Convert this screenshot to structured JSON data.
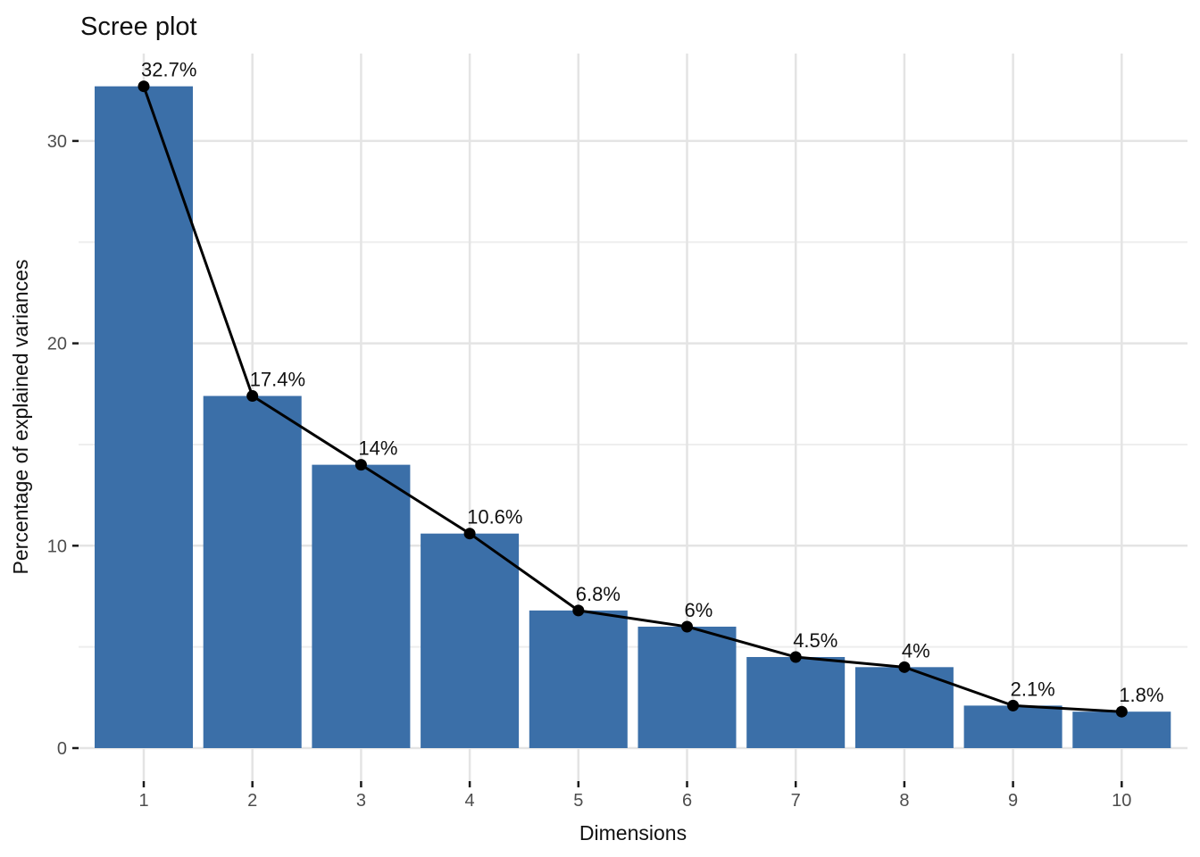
{
  "chart_data": {
    "type": "bar",
    "overlay": "line+points",
    "title": "Scree plot",
    "xlabel": "Dimensions",
    "ylabel": "Percentage of explained variances",
    "categories": [
      "1",
      "2",
      "3",
      "4",
      "5",
      "6",
      "7",
      "8",
      "9",
      "10"
    ],
    "series": [
      {
        "name": "Percentage of explained variances",
        "values": [
          32.7,
          17.4,
          14,
          10.6,
          6.8,
          6,
          4.5,
          4,
          2.1,
          1.8
        ]
      }
    ],
    "point_labels": [
      "32.7%",
      "17.4%",
      "14%",
      "10.6%",
      "6.8%",
      "6%",
      "4.5%",
      "4%",
      "2.1%",
      "1.8%"
    ],
    "ylim": [
      0,
      34.3
    ],
    "yticks": [
      0,
      10,
      20,
      30
    ],
    "yticks_minor": [
      5,
      15,
      25
    ],
    "grid": "major+minor",
    "legend": "none",
    "colors": {
      "bar": "#3B6FA8",
      "line": "#000000",
      "point": "#000000",
      "gridline_major": "#E4E4E4",
      "gridline_minor": "#EEEEEE",
      "tick_mark": "#1A1A1A",
      "tick_label": "#4D4D4D",
      "text": "#111111",
      "background": "#FFFFFF"
    }
  }
}
